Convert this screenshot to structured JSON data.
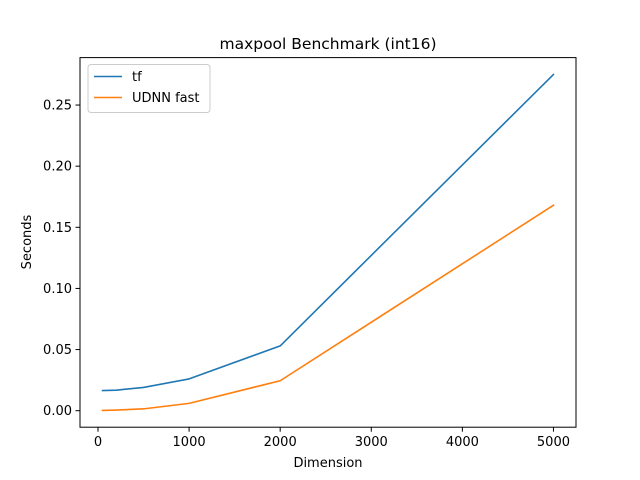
{
  "chart_data": {
    "type": "line",
    "title": "maxpool Benchmark (int16)",
    "xlabel": "Dimension",
    "ylabel": "Seconds",
    "x": [
      50,
      200,
      500,
      1000,
      2000,
      5000
    ],
    "series": [
      {
        "name": "tf",
        "color": "#1f77b4",
        "values": [
          0.0165,
          0.0168,
          0.019,
          0.026,
          0.053,
          0.275
        ]
      },
      {
        "name": "UDNN fast",
        "color": "#ff7f0e",
        "values": [
          0.0002,
          0.0005,
          0.0015,
          0.006,
          0.0245,
          0.168
        ]
      }
    ],
    "xlim": [
      -197.5,
      5247.5
    ],
    "ylim": [
      -0.0135,
      0.2888
    ],
    "xticks": [
      0,
      1000,
      2000,
      3000,
      4000,
      5000
    ],
    "xtick_labels": [
      "0",
      "1000",
      "2000",
      "3000",
      "4000",
      "5000"
    ],
    "yticks": [
      0.0,
      0.05,
      0.1,
      0.15,
      0.2,
      0.25
    ],
    "ytick_labels": [
      "0.00",
      "0.05",
      "0.10",
      "0.15",
      "0.20",
      "0.25"
    ],
    "legend": "upper left",
    "grid": false
  }
}
